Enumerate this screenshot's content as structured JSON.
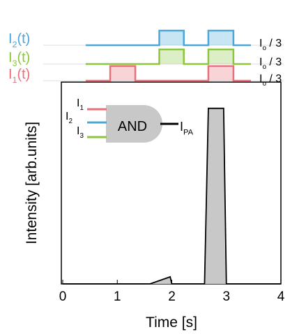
{
  "chart_data": {
    "type": "line",
    "xlabel": "Time [s]",
    "ylabel": "Intensity [arb.units]",
    "xlim": [
      0,
      4
    ],
    "ylim": [
      0,
      1
    ],
    "xticks": [
      0,
      1,
      2,
      3,
      4
    ],
    "x": [
      0,
      1.6,
      1.97,
      2.0,
      2.6,
      2.67,
      2.95,
      3.0,
      4
    ],
    "values": [
      0,
      0,
      0.035,
      0,
      0,
      0.87,
      0.87,
      0,
      0
    ],
    "color": "#000000",
    "fill": "#c8c8c8",
    "pulses": [
      {
        "name": {
          "main": "I",
          "sub": "2",
          "rest": "(t)"
        },
        "amplitude": {
          "main": "I",
          "sub": "o",
          "rest": " / 3"
        },
        "color": "#4aa8d8",
        "x": [
          0.42,
          1.77,
          1.77,
          2.22,
          2.22,
          2.67,
          2.67,
          3.13,
          3.13,
          3.45
        ],
        "values": [
          0,
          0,
          1,
          1,
          0,
          0,
          1,
          1,
          0,
          0
        ]
      },
      {
        "name": {
          "main": "I",
          "sub": "3",
          "rest": "(t)"
        },
        "amplitude": {
          "main": "I",
          "sub": "o",
          "rest": " / 3"
        },
        "color": "#8cc63f",
        "x": [
          0.42,
          1.77,
          1.77,
          2.22,
          2.22,
          2.67,
          2.67,
          3.13,
          3.13,
          3.45
        ],
        "values": [
          0,
          0,
          1,
          1,
          0,
          0,
          1,
          1,
          0,
          0
        ]
      },
      {
        "name": {
          "main": "I",
          "sub": "1",
          "rest": "(t)"
        },
        "amplitude": {
          "main": "I",
          "sub": "o",
          "rest": " / 3"
        },
        "color": "#e8707a",
        "x": [
          0.42,
          0.87,
          0.87,
          1.33,
          1.33,
          2.67,
          2.67,
          3.13,
          3.13,
          3.45
        ],
        "values": [
          0,
          0,
          1,
          1,
          0,
          0,
          1,
          1,
          0,
          0
        ]
      }
    ],
    "gate": {
      "label": "AND",
      "inputs": [
        {
          "main": "I",
          "sub": "1",
          "color": "#e8707a"
        },
        {
          "main": "I",
          "sub": "2",
          "color": "#4aa8d8"
        },
        {
          "main": "I",
          "sub": "3",
          "color": "#8cc63f"
        }
      ],
      "output": {
        "main": "I",
        "sub": "PA"
      }
    }
  }
}
